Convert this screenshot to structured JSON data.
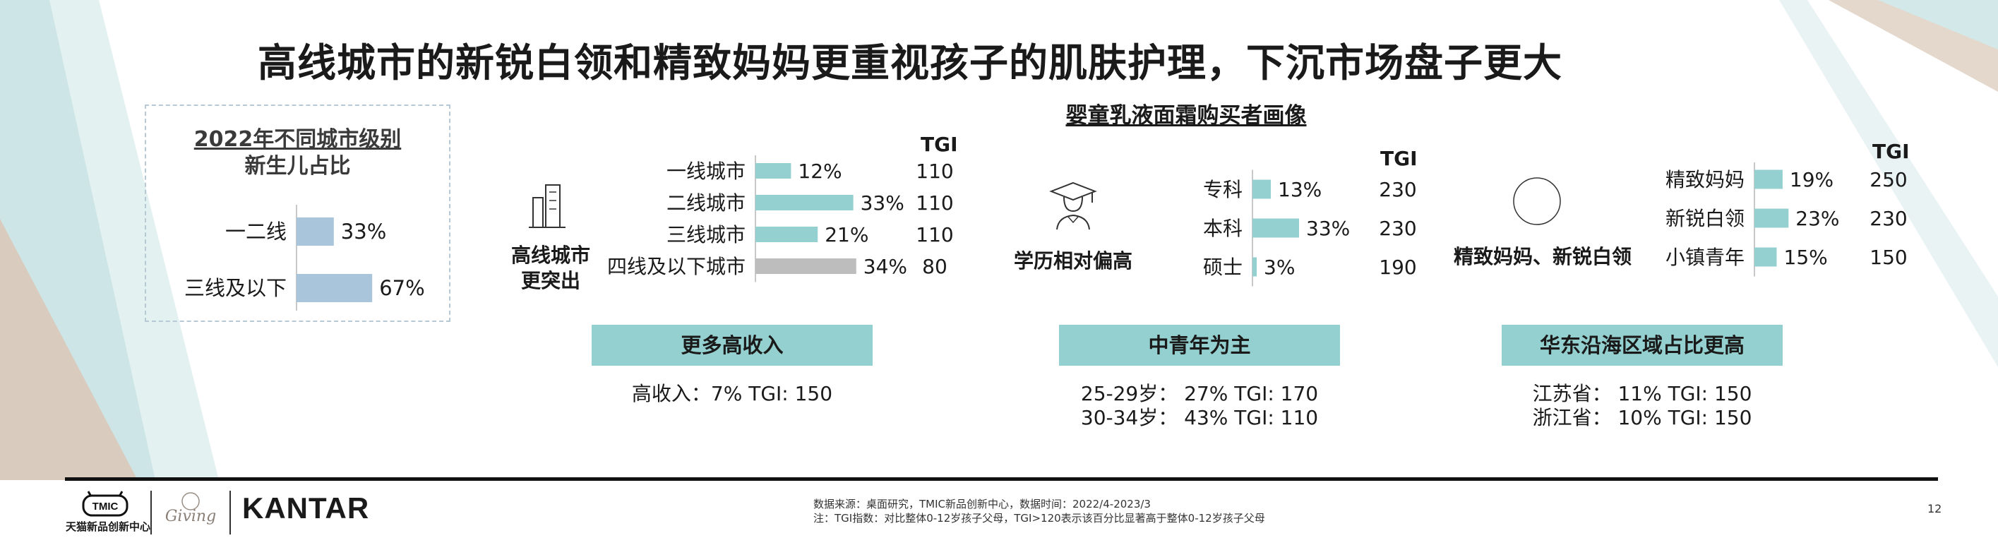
{
  "title": "高线城市的新锐白领和精致妈妈更重视孩子的肌肤护理，下沉市场盘子更大",
  "colors": {
    "bar_teal": "#93d0cf",
    "bar_blue": "#a9c5dc",
    "bar_gray": "#bdbdbd",
    "band": "#93d0cf",
    "accent_corner": "#d2e8e8",
    "accent_brown": "#d8c8b8"
  },
  "chart_data": [
    {
      "type": "bar",
      "orientation": "horizontal",
      "title": "2022年不同城市级别 新生儿占比",
      "title_lines": [
        "2022年不同城市级别",
        "新生儿占比"
      ],
      "categories": [
        "一二线",
        "三线及以下"
      ],
      "values": [
        33,
        67
      ],
      "value_labels": [
        "33%",
        "67%"
      ],
      "xlim": [
        0,
        100
      ]
    },
    {
      "type": "bar",
      "orientation": "horizontal",
      "group_title": "婴童乳液面霜购买者画像",
      "caption": "高线城市更突出",
      "caption_lines": [
        "高线城市",
        "更突出"
      ],
      "icon": "city-buildings-icon",
      "tgi_header": "TGI",
      "categories": [
        "一线城市",
        "二线城市",
        "三线城市",
        "四线及以下城市"
      ],
      "values": [
        12,
        33,
        21,
        34
      ],
      "value_labels": [
        "12%",
        "33%",
        "21%",
        "34%"
      ],
      "tgi": [
        "110",
        "110",
        "110",
        "80"
      ],
      "bar_colors": [
        "teal",
        "teal",
        "teal",
        "gray"
      ],
      "xlim": [
        0,
        45
      ],
      "band": "更多高收入",
      "notes": [
        "高收入：7% TGI: 150"
      ]
    },
    {
      "type": "bar",
      "orientation": "horizontal",
      "caption": "学历相对偏高",
      "icon": "graduate-icon",
      "tgi_header": "TGI",
      "categories": [
        "专科",
        "本科",
        "硕士"
      ],
      "values": [
        13,
        33,
        3
      ],
      "value_labels": [
        "13%",
        "33%",
        "3%"
      ],
      "tgi": [
        "230",
        "230",
        "190"
      ],
      "xlim": [
        0,
        45
      ],
      "band": "中青年为主",
      "notes": [
        "25-29岁： 27% TGI: 170",
        "30-34岁： 43% TGI: 110"
      ]
    },
    {
      "type": "bar",
      "orientation": "horizontal",
      "caption": "精致妈妈、新锐白领",
      "icon": "circle-icon",
      "tgi_header": "TGI",
      "categories": [
        "精致妈妈",
        "新锐白领",
        "小镇青年"
      ],
      "values": [
        19,
        23,
        15
      ],
      "value_labels": [
        "19%",
        "23%",
        "15%"
      ],
      "tgi": [
        "250",
        "230",
        "150"
      ],
      "xlim": [
        0,
        45
      ],
      "band": "华东沿海区域占比更高",
      "notes": [
        "江苏省： 11% TGI: 150",
        "浙江省： 10% TGI: 150"
      ]
    }
  ],
  "footer": {
    "source": "数据来源：桌面研究，TMIC新品创新中心，数据时间：2022/4-2023/3",
    "note": "注：TGI指数：对比整体0-12岁孩子父母，TGI>120表示该百分比显著高于整体0-12岁孩子父母",
    "page": "12",
    "logo_tmic": "TMIC",
    "logo_tmic_text": "天猫新品创新中心",
    "logo_giving": "Giving",
    "logo_kantar": "KANTAR"
  }
}
